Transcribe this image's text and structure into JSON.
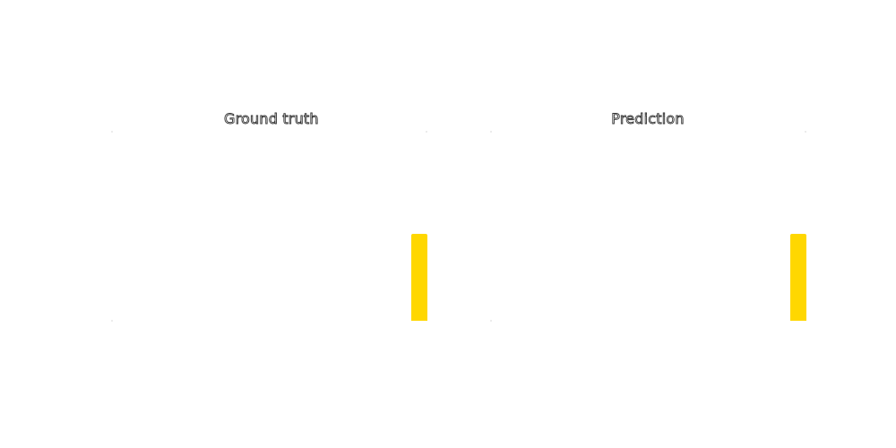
{
  "panels": [
    {
      "title": "Ground truth",
      "bar_color": "#FFD700",
      "bar_level": 0.46
    },
    {
      "title": "Prediction",
      "bar_color": "#FFD700",
      "bar_level": 0.46
    }
  ]
}
